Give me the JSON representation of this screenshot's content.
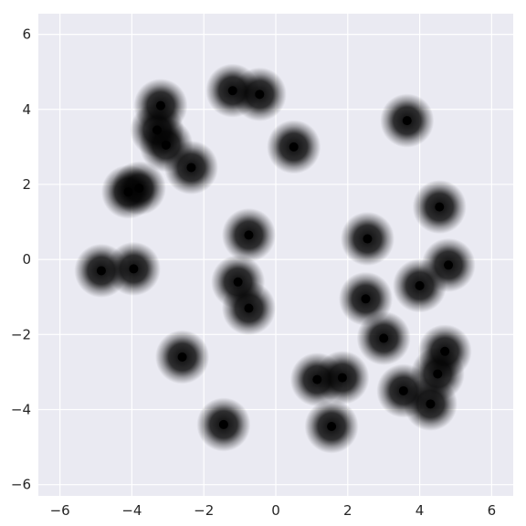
{
  "chart_data": {
    "type": "scatter",
    "title": "",
    "xlabel": "",
    "ylabel": "",
    "xlim": [
      -6.6,
      6.6
    ],
    "ylim": [
      -6.3,
      6.55
    ],
    "x_ticks": [
      -6,
      -4,
      -2,
      0,
      2,
      4,
      6
    ],
    "y_ticks": [
      -6,
      -4,
      -2,
      0,
      2,
      4,
      6
    ],
    "x_tick_labels": [
      "−6",
      "−4",
      "−2",
      "0",
      "2",
      "4",
      "6"
    ],
    "y_tick_labels": [
      "−6",
      "−4",
      "−2",
      "0",
      "2",
      "4",
      "6"
    ],
    "grid": true,
    "background": "#eaeaf2",
    "grid_color": "#ffffff",
    "center_color": "#000000",
    "clusters": [
      {
        "x": -3.2,
        "y": 4.1,
        "color": "#1f77b4"
      },
      {
        "x": -3.3,
        "y": 3.45,
        "color": "#d62728"
      },
      {
        "x": -3.05,
        "y": 3.05,
        "color": "#d62728"
      },
      {
        "x": -1.2,
        "y": 4.5,
        "color": "#1f77b4"
      },
      {
        "x": -0.45,
        "y": 4.4,
        "color": "#2ca02c"
      },
      {
        "x": 0.5,
        "y": 3.0,
        "color": "#7f7f7f"
      },
      {
        "x": 3.65,
        "y": 3.7,
        "color": "#ff7f0e"
      },
      {
        "x": -2.35,
        "y": 2.45,
        "color": "#7f7f7f"
      },
      {
        "x": -4.1,
        "y": 1.8,
        "color": "#e377c2"
      },
      {
        "x": -3.8,
        "y": 1.9,
        "color": "#d62728"
      },
      {
        "x": 4.55,
        "y": 1.4,
        "color": "#1f77b4"
      },
      {
        "x": -0.75,
        "y": 0.65,
        "color": "#9467bd"
      },
      {
        "x": 2.55,
        "y": 0.55,
        "color": "#7f7f7f"
      },
      {
        "x": -4.85,
        "y": -0.3,
        "color": "#8c564b"
      },
      {
        "x": -3.95,
        "y": -0.25,
        "color": "#d62728"
      },
      {
        "x": 4.8,
        "y": -0.15,
        "color": "#bcbd22"
      },
      {
        "x": -1.05,
        "y": -0.6,
        "color": "#e377c2"
      },
      {
        "x": 4.0,
        "y": -0.7,
        "color": "#8c564b"
      },
      {
        "x": -0.75,
        "y": -1.3,
        "color": "#8c564b"
      },
      {
        "x": 2.5,
        "y": -1.05,
        "color": "#17becf"
      },
      {
        "x": 3.0,
        "y": -2.1,
        "color": "#17becf"
      },
      {
        "x": -2.6,
        "y": -2.6,
        "color": "#9467bd"
      },
      {
        "x": 4.7,
        "y": -2.45,
        "color": "#ff7f0e"
      },
      {
        "x": 1.15,
        "y": -3.2,
        "color": "#bcbd22"
      },
      {
        "x": 1.85,
        "y": -3.15,
        "color": "#ff7f0e"
      },
      {
        "x": 4.5,
        "y": -3.05,
        "color": "#2ca02c"
      },
      {
        "x": 4.3,
        "y": -3.85,
        "color": "#bcbd22"
      },
      {
        "x": 3.55,
        "y": -3.5,
        "color": "#2ca02c"
      },
      {
        "x": -1.45,
        "y": -4.4,
        "color": "#17becf"
      },
      {
        "x": 1.55,
        "y": -4.45,
        "color": "#9467bd"
      }
    ]
  }
}
